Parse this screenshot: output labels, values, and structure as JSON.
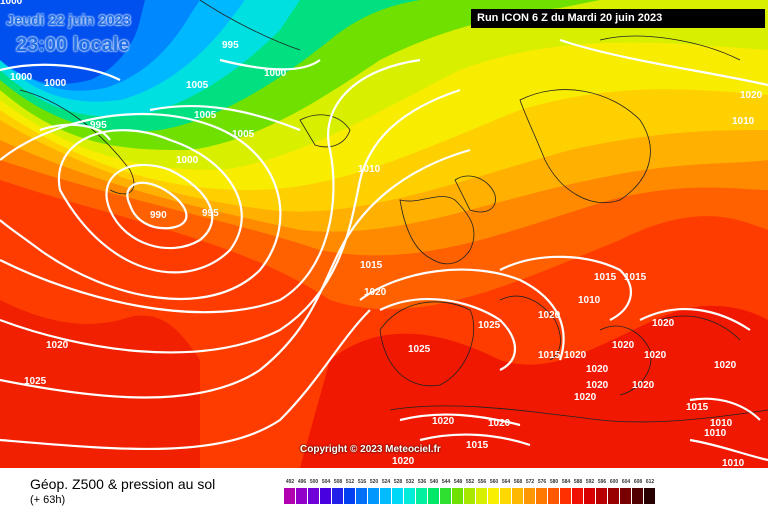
{
  "header": {
    "date": "Jeudi 22 juin 2023",
    "time": "23:00 locale",
    "run_info": "Run ICON 6 Z du Mardi 20 juin 2023"
  },
  "footer": {
    "parameter": "Géop. Z500 & pression au sol",
    "forecast_step": "(+ 63h)",
    "copyright": "Copyright © 2023 Meteociel.fr"
  },
  "legend": {
    "values": [
      "492",
      "496",
      "500",
      "504",
      "508",
      "512",
      "516",
      "520",
      "524",
      "528",
      "532",
      "536",
      "540",
      "544",
      "548",
      "552",
      "556",
      "560",
      "564",
      "568",
      "572",
      "576",
      "580",
      "584",
      "588",
      "592",
      "596",
      "600",
      "604",
      "608",
      "612"
    ],
    "colors": [
      "#b000b0",
      "#9000c8",
      "#7000d8",
      "#4800e0",
      "#2020e8",
      "#0040f0",
      "#0070f8",
      "#0098ff",
      "#00bcff",
      "#00d8f8",
      "#00ecd8",
      "#00f0a0",
      "#00e868",
      "#30e030",
      "#70e000",
      "#a8e800",
      "#d8f000",
      "#f8f000",
      "#ffd800",
      "#ffb800",
      "#ff9800",
      "#ff7800",
      "#ff5800",
      "#ff3000",
      "#f01000",
      "#d80000",
      "#b80000",
      "#980000",
      "#780000",
      "#500000",
      "#280000"
    ]
  },
  "isobar_labels": [
    "1000",
    "995",
    "1000",
    "1000",
    "995",
    "1005",
    "1005",
    "1000",
    "1005",
    "1000",
    "990",
    "995",
    "1010",
    "1015",
    "1020",
    "1015",
    "1015",
    "1010",
    "1025",
    "1020",
    "1020",
    "1025",
    "1015",
    "1020",
    "1020",
    "1020",
    "1020",
    "1020",
    "1020",
    "1020",
    "1020",
    "1015",
    "1010",
    "1010",
    "1010",
    "1020",
    "1025",
    "1020",
    "1020",
    "1015",
    "1020",
    "1010",
    "1020"
  ]
}
